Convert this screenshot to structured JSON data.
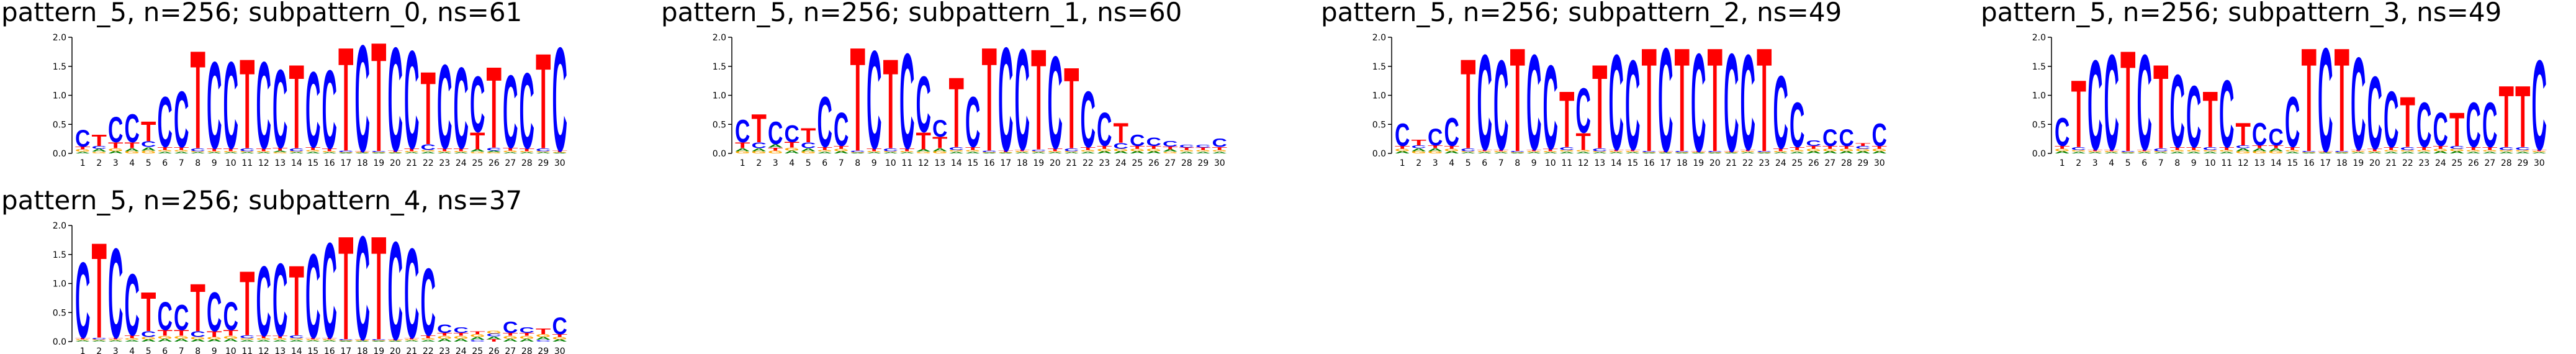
{
  "chart_data": [
    {
      "type": "logo",
      "title": "pattern_5, n=256; subpattern_0, ns=61",
      "categories": [
        1,
        2,
        3,
        4,
        5,
        6,
        7,
        8,
        9,
        10,
        11,
        12,
        13,
        14,
        15,
        16,
        17,
        18,
        19,
        20,
        21,
        22,
        23,
        24,
        25,
        26,
        27,
        28,
        29,
        30
      ],
      "ylim": [
        0,
        2
      ],
      "yticks": [
        {
          "value": 0,
          "label": "0.0"
        },
        {
          "value": 0.5,
          "label": "0.5"
        },
        {
          "value": 1,
          "label": "1.0"
        },
        {
          "value": 1.5,
          "label": "1.5"
        },
        {
          "value": 2,
          "label": "2.0"
        }
      ],
      "series": [
        {
          "name": "A",
          "color": "#008000",
          "values": [
            0.03,
            0.05,
            0.04,
            0.05,
            0.06,
            0.03,
            0.03,
            0.02,
            0.02,
            0.02,
            0.02,
            0.02,
            0.03,
            0.02,
            0.03,
            0.02,
            0.01,
            0.01,
            0.01,
            0.01,
            0.02,
            0.03,
            0.02,
            0.02,
            0.04,
            0.03,
            0.02,
            0.02,
            0.02,
            0.01
          ]
        },
        {
          "name": "C",
          "color": "#0000ff",
          "values": [
            0.3,
            0.05,
            0.45,
            0.5,
            0.1,
            0.9,
            1.0,
            0.05,
            1.55,
            1.55,
            0.05,
            1.55,
            1.4,
            0.05,
            1.35,
            1.4,
            0.03,
            1.9,
            0.02,
            1.85,
            1.75,
            0.1,
            1.5,
            1.45,
            1.0,
            0.05,
            1.3,
            1.35,
            0.05,
            1.85
          ]
        },
        {
          "name": "G",
          "color": "#ffa500",
          "values": [
            0.04,
            0.03,
            0.05,
            0.04,
            0.05,
            0.03,
            0.03,
            0.02,
            0.02,
            0.02,
            0.02,
            0.02,
            0.02,
            0.02,
            0.03,
            0.02,
            0.01,
            0.01,
            0.01,
            0.01,
            0.02,
            0.03,
            0.02,
            0.02,
            0.03,
            0.02,
            0.03,
            0.02,
            0.02,
            0.01
          ]
        },
        {
          "name": "T",
          "color": "#ff0000",
          "values": [
            0.05,
            0.2,
            0.1,
            0.1,
            0.35,
            0.05,
            0.05,
            1.75,
            0.05,
            0.05,
            1.6,
            0.05,
            0.05,
            1.5,
            0.05,
            0.05,
            1.85,
            0.02,
            1.95,
            0.03,
            0.05,
            1.3,
            0.05,
            0.05,
            0.3,
            1.45,
            0.05,
            0.05,
            1.7,
            0.03
          ]
        }
      ]
    },
    {
      "type": "logo",
      "title": "pattern_5, n=256; subpattern_1, ns=60",
      "categories": [
        1,
        2,
        3,
        4,
        5,
        6,
        7,
        8,
        9,
        10,
        11,
        12,
        13,
        14,
        15,
        16,
        17,
        18,
        19,
        20,
        21,
        22,
        23,
        24,
        25,
        26,
        27,
        28,
        29,
        30
      ],
      "ylim": [
        0,
        2
      ],
      "yticks": [
        {
          "value": 0,
          "label": "0.0"
        },
        {
          "value": 0.5,
          "label": "0.5"
        },
        {
          "value": 1,
          "label": "1.0"
        },
        {
          "value": 1.5,
          "label": "1.5"
        },
        {
          "value": 2,
          "label": "2.0"
        }
      ],
      "series": [
        {
          "name": "A",
          "color": "#008000",
          "values": [
            0.05,
            0.05,
            0.06,
            0.05,
            0.05,
            0.03,
            0.04,
            0.01,
            0.02,
            0.02,
            0.02,
            0.04,
            0.05,
            0.03,
            0.03,
            0.01,
            0.01,
            0.02,
            0.02,
            0.02,
            0.02,
            0.03,
            0.04,
            0.04,
            0.04,
            0.04,
            0.04,
            0.03,
            0.03,
            0.03
          ]
        },
        {
          "name": "C",
          "color": "#0000ff",
          "values": [
            0.4,
            0.1,
            0.4,
            0.3,
            0.1,
            0.9,
            0.6,
            0.03,
            1.75,
            0.05,
            1.7,
            1.0,
            0.3,
            0.05,
            0.9,
            0.03,
            1.85,
            1.8,
            0.03,
            1.65,
            0.05,
            1.0,
            0.6,
            0.1,
            0.2,
            0.15,
            0.1,
            0.05,
            0.05,
            0.15
          ]
        },
        {
          "name": "G",
          "color": "#ffa500",
          "values": [
            0.04,
            0.04,
            0.05,
            0.05,
            0.04,
            0.03,
            0.04,
            0.01,
            0.02,
            0.02,
            0.02,
            0.03,
            0.04,
            0.03,
            0.03,
            0.01,
            0.01,
            0.02,
            0.02,
            0.02,
            0.02,
            0.03,
            0.04,
            0.04,
            0.04,
            0.04,
            0.03,
            0.03,
            0.03,
            0.03
          ]
        },
        {
          "name": "T",
          "color": "#ff0000",
          "values": [
            0.1,
            0.5,
            0.05,
            0.1,
            0.25,
            0.05,
            0.05,
            1.85,
            0.05,
            1.6,
            0.05,
            0.3,
            0.2,
            1.25,
            0.05,
            1.85,
            0.03,
            0.03,
            1.8,
            0.05,
            1.45,
            0.05,
            0.05,
            0.35,
            0.05,
            0.05,
            0.05,
            0.04,
            0.04,
            0.05
          ]
        }
      ]
    },
    {
      "type": "logo",
      "title": "pattern_5, n=256; subpattern_2, ns=49",
      "categories": [
        1,
        2,
        3,
        4,
        5,
        6,
        7,
        8,
        9,
        10,
        11,
        12,
        13,
        14,
        15,
        16,
        17,
        18,
        19,
        20,
        21,
        22,
        23,
        24,
        25,
        26,
        27,
        28,
        29,
        30
      ],
      "ylim": [
        0,
        2
      ],
      "yticks": [
        {
          "value": 0,
          "label": "0.0"
        },
        {
          "value": 0.5,
          "label": "0.5"
        },
        {
          "value": 1,
          "label": "1.0"
        },
        {
          "value": 1.5,
          "label": "1.5"
        },
        {
          "value": 2,
          "label": "2.0"
        }
      ],
      "series": [
        {
          "name": "A",
          "color": "#008000",
          "values": [
            0.04,
            0.05,
            0.05,
            0.04,
            0.02,
            0.02,
            0.02,
            0.01,
            0.02,
            0.02,
            0.03,
            0.03,
            0.02,
            0.02,
            0.02,
            0.01,
            0.01,
            0.01,
            0.01,
            0.01,
            0.01,
            0.02,
            0.01,
            0.02,
            0.03,
            0.04,
            0.04,
            0.04,
            0.04,
            0.04
          ]
        },
        {
          "name": "C",
          "color": "#0000ff",
          "values": [
            0.4,
            0.05,
            0.3,
            0.5,
            0.05,
            1.7,
            1.6,
            0.02,
            1.7,
            1.5,
            0.05,
            0.8,
            0.05,
            1.7,
            1.6,
            0.02,
            1.85,
            0.02,
            1.75,
            0.02,
            1.75,
            1.7,
            0.02,
            1.3,
            0.8,
            0.1,
            0.3,
            0.3,
            0.05,
            0.4
          ]
        },
        {
          "name": "G",
          "color": "#ffa500",
          "values": [
            0.04,
            0.04,
            0.04,
            0.04,
            0.02,
            0.02,
            0.02,
            0.01,
            0.02,
            0.02,
            0.03,
            0.03,
            0.02,
            0.02,
            0.02,
            0.01,
            0.01,
            0.01,
            0.01,
            0.01,
            0.01,
            0.02,
            0.01,
            0.02,
            0.03,
            0.04,
            0.04,
            0.04,
            0.04,
            0.04
          ]
        },
        {
          "name": "T",
          "color": "#ff0000",
          "values": [
            0.05,
            0.1,
            0.05,
            0.05,
            1.6,
            0.03,
            0.03,
            1.85,
            0.03,
            0.04,
            1.0,
            0.3,
            1.5,
            0.03,
            0.03,
            1.85,
            0.02,
            1.85,
            0.02,
            1.85,
            0.02,
            0.03,
            1.85,
            0.05,
            0.05,
            0.05,
            0.05,
            0.05,
            0.05,
            0.05
          ]
        }
      ]
    },
    {
      "type": "logo",
      "title": "pattern_5, n=256; subpattern_3, ns=49",
      "categories": [
        1,
        2,
        3,
        4,
        5,
        6,
        7,
        8,
        9,
        10,
        11,
        12,
        13,
        14,
        15,
        16,
        17,
        18,
        19,
        20,
        21,
        22,
        23,
        24,
        25,
        26,
        27,
        28,
        29,
        30
      ],
      "ylim": [
        0,
        2
      ],
      "yticks": [
        {
          "value": 0,
          "label": "0.0"
        },
        {
          "value": 0.5,
          "label": "0.5"
        },
        {
          "value": 1,
          "label": "1.0"
        },
        {
          "value": 1.5,
          "label": "1.5"
        },
        {
          "value": 2,
          "label": "2.0"
        }
      ],
      "series": [
        {
          "name": "A",
          "color": "#008000",
          "values": [
            0.04,
            0.03,
            0.02,
            0.02,
            0.01,
            0.02,
            0.02,
            0.03,
            0.03,
            0.03,
            0.03,
            0.05,
            0.05,
            0.05,
            0.03,
            0.01,
            0.01,
            0.01,
            0.02,
            0.02,
            0.03,
            0.03,
            0.03,
            0.04,
            0.04,
            0.03,
            0.03,
            0.03,
            0.03,
            0.02
          ]
        },
        {
          "name": "C",
          "color": "#0000ff",
          "values": [
            0.5,
            0.05,
            1.6,
            1.7,
            0.02,
            1.7,
            0.05,
            1.3,
            1.1,
            0.05,
            1.2,
            0.05,
            0.4,
            0.3,
            0.9,
            0.02,
            1.85,
            0.02,
            1.65,
            1.3,
            1.0,
            0.05,
            0.8,
            0.6,
            0.05,
            0.8,
            0.8,
            0.05,
            0.05,
            1.6
          ]
        },
        {
          "name": "G",
          "color": "#ffa500",
          "values": [
            0.04,
            0.03,
            0.02,
            0.02,
            0.01,
            0.02,
            0.02,
            0.03,
            0.03,
            0.03,
            0.03,
            0.04,
            0.04,
            0.04,
            0.03,
            0.01,
            0.01,
            0.01,
            0.02,
            0.02,
            0.03,
            0.03,
            0.03,
            0.04,
            0.04,
            0.03,
            0.03,
            0.03,
            0.03,
            0.02
          ]
        },
        {
          "name": "T",
          "color": "#ff0000",
          "values": [
            0.05,
            1.2,
            0.03,
            0.03,
            1.8,
            0.03,
            1.5,
            0.05,
            0.05,
            1.0,
            0.05,
            0.4,
            0.05,
            0.05,
            0.05,
            1.85,
            0.02,
            1.85,
            0.03,
            0.04,
            0.05,
            0.9,
            0.05,
            0.05,
            0.6,
            0.05,
            0.05,
            1.1,
            1.1,
            0.03
          ]
        }
      ]
    },
    {
      "type": "logo",
      "title": "pattern_5, n=256; subpattern_4, ns=37",
      "categories": [
        1,
        2,
        3,
        4,
        5,
        6,
        7,
        8,
        9,
        10,
        11,
        12,
        13,
        14,
        15,
        16,
        17,
        18,
        19,
        20,
        21,
        22,
        23,
        24,
        25,
        26,
        27,
        28,
        29,
        30
      ],
      "ylim": [
        0,
        2
      ],
      "yticks": [
        {
          "value": 0,
          "label": "0.0"
        },
        {
          "value": 0.5,
          "label": "0.5"
        },
        {
          "value": 1,
          "label": "1.0"
        },
        {
          "value": 1.5,
          "label": "1.5"
        },
        {
          "value": 2,
          "label": "2.0"
        }
      ],
      "series": [
        {
          "name": "A",
          "color": "#008000",
          "values": [
            0.02,
            0.02,
            0.02,
            0.03,
            0.04,
            0.05,
            0.05,
            0.04,
            0.04,
            0.05,
            0.03,
            0.03,
            0.03,
            0.03,
            0.02,
            0.02,
            0.01,
            0.01,
            0.01,
            0.01,
            0.02,
            0.03,
            0.05,
            0.05,
            0.05,
            0.05,
            0.05,
            0.05,
            0.05,
            0.04
          ]
        },
        {
          "name": "C",
          "color": "#0000ff",
          "values": [
            1.35,
            0.03,
            1.6,
            1.1,
            0.1,
            0.5,
            0.45,
            0.1,
            0.7,
            0.5,
            0.05,
            1.25,
            1.3,
            0.05,
            1.5,
            1.7,
            0.02,
            1.85,
            0.02,
            1.75,
            1.6,
            1.2,
            0.15,
            0.1,
            0.03,
            0.05,
            0.2,
            0.1,
            0.03,
            0.3
          ]
        },
        {
          "name": "G",
          "color": "#ffa500",
          "values": [
            0.02,
            0.02,
            0.02,
            0.03,
            0.04,
            0.05,
            0.05,
            0.04,
            0.04,
            0.05,
            0.03,
            0.03,
            0.03,
            0.03,
            0.02,
            0.02,
            0.01,
            0.01,
            0.01,
            0.01,
            0.02,
            0.03,
            0.05,
            0.05,
            0.05,
            0.05,
            0.05,
            0.05,
            0.05,
            0.04
          ]
        },
        {
          "name": "T",
          "color": "#ff0000",
          "values": [
            0.03,
            1.7,
            0.03,
            0.05,
            0.7,
            0.1,
            0.1,
            0.85,
            0.1,
            0.1,
            1.15,
            0.04,
            0.04,
            1.25,
            0.03,
            0.03,
            1.85,
            0.02,
            1.85,
            0.02,
            0.03,
            0.05,
            0.05,
            0.05,
            0.05,
            0.04,
            0.05,
            0.05,
            0.1,
            0.05
          ]
        }
      ]
    }
  ]
}
